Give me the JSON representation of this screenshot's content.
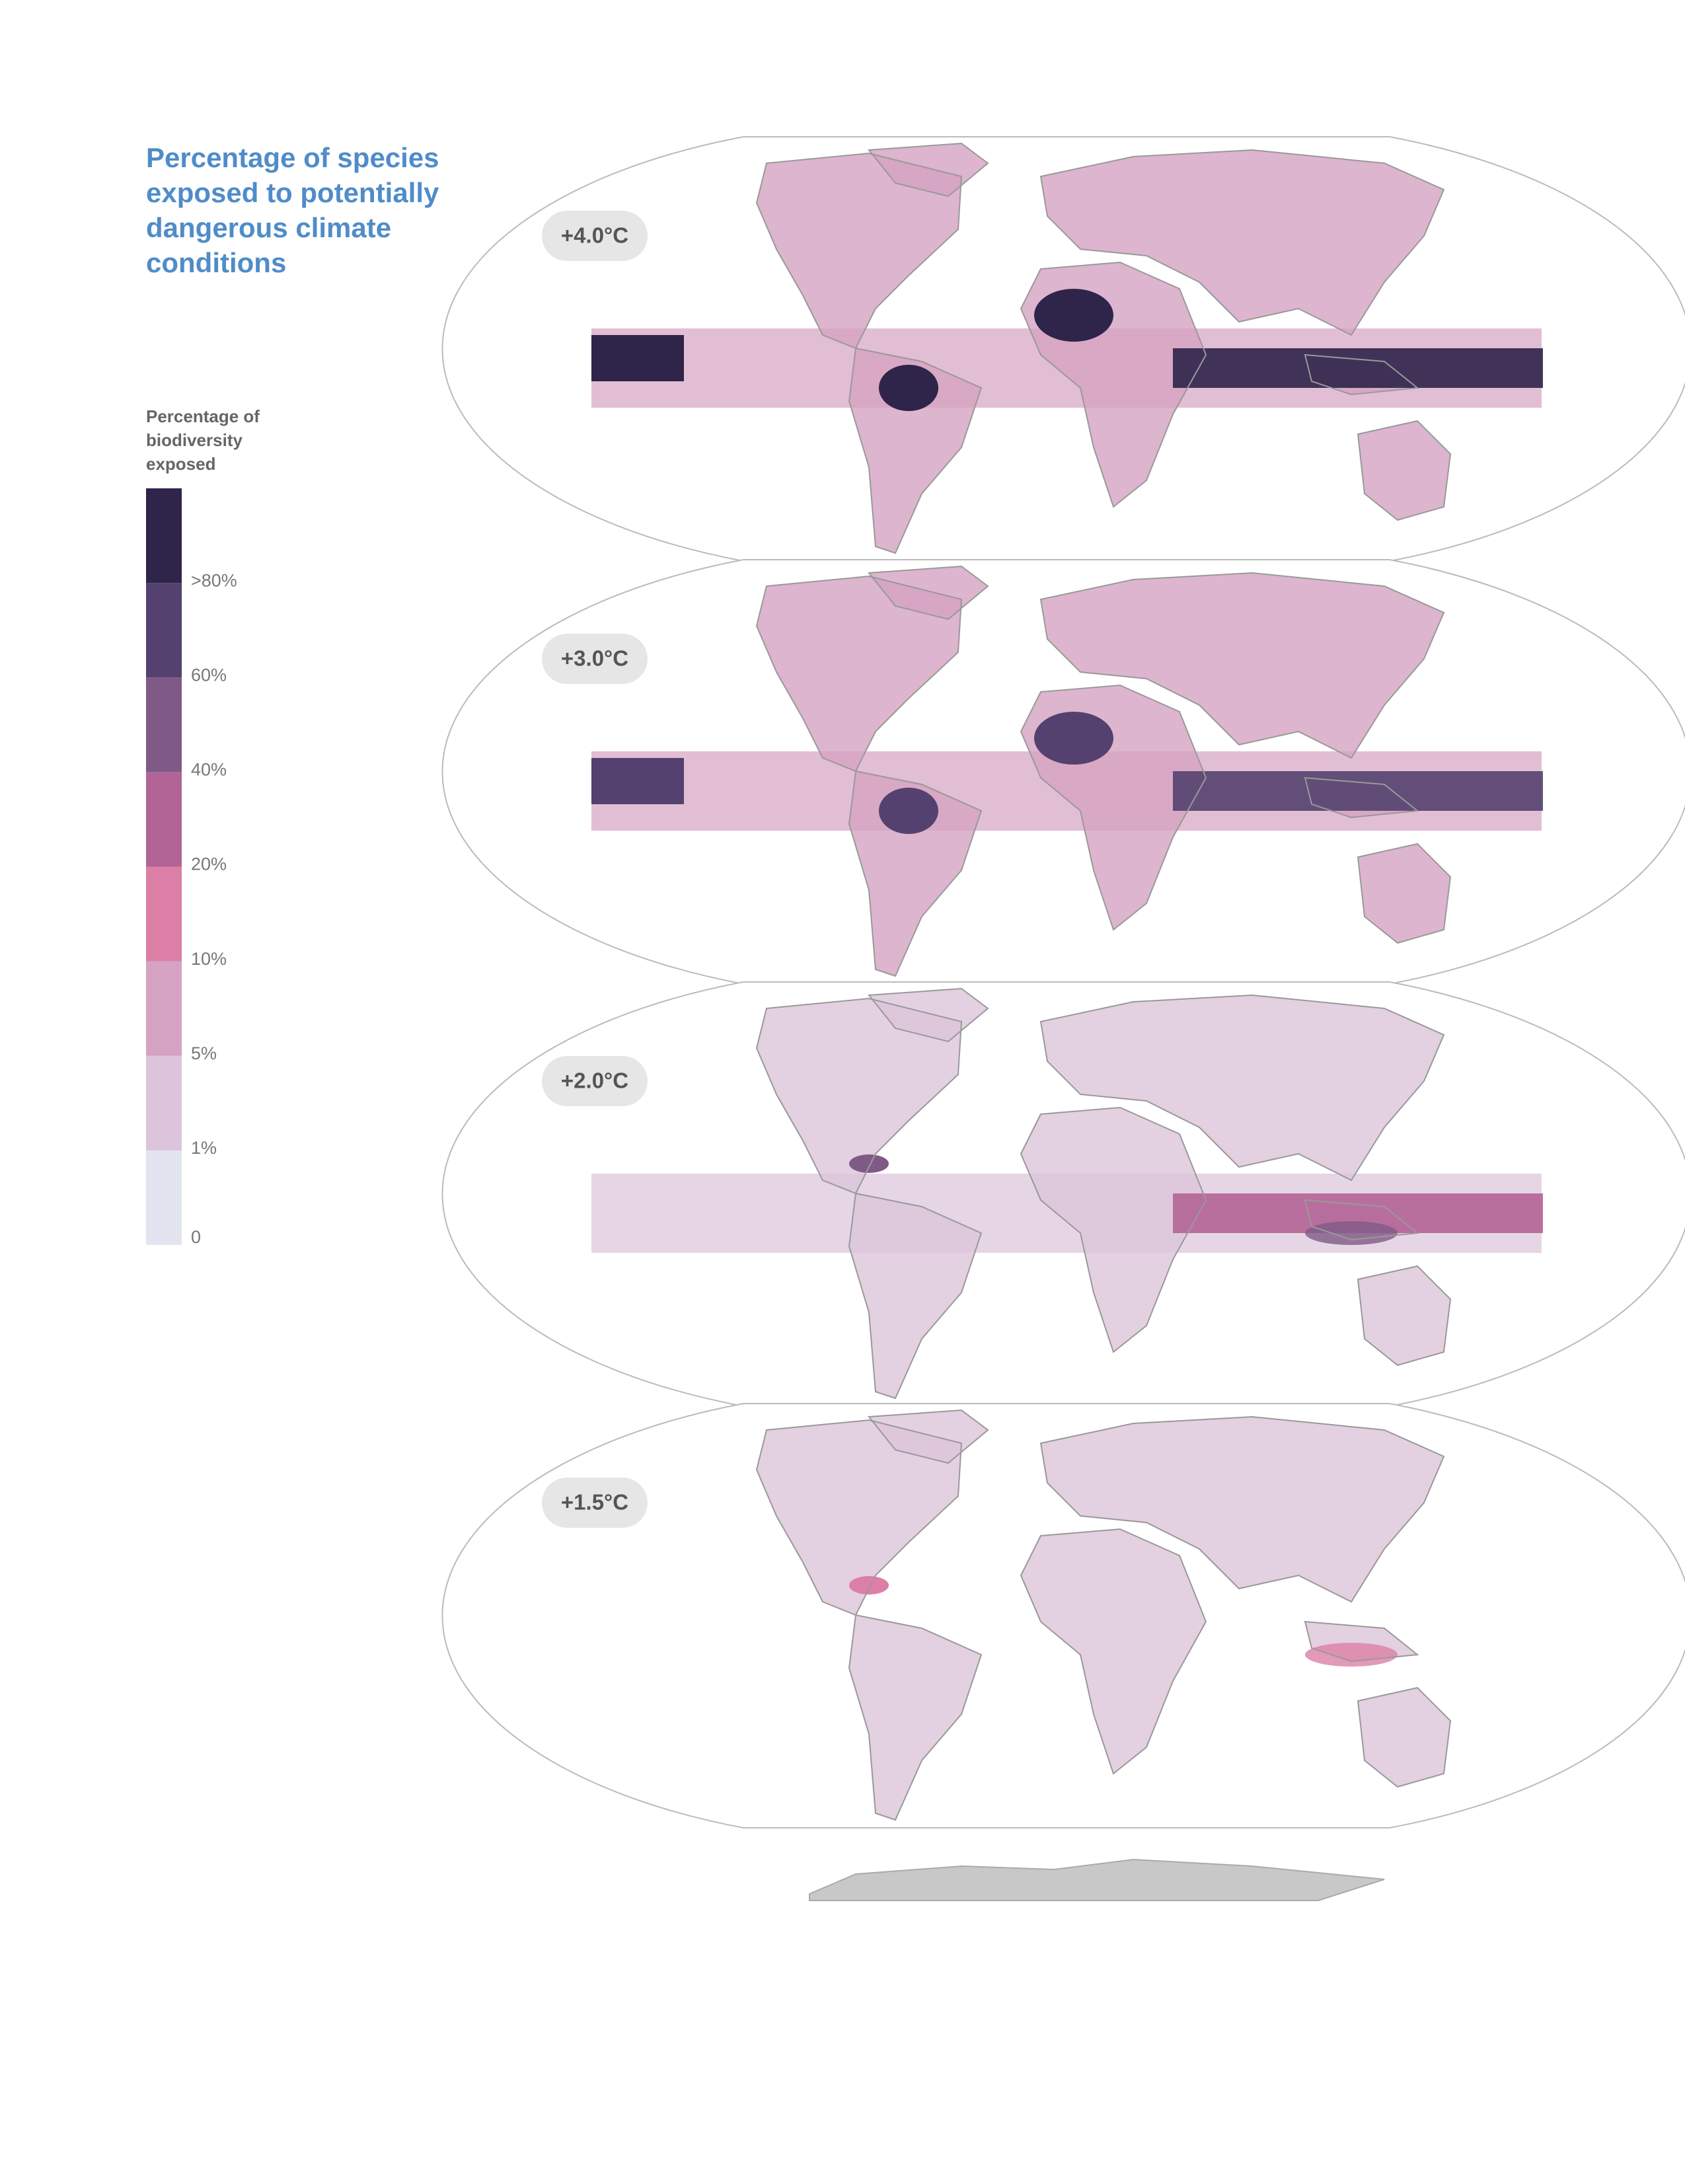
{
  "header": {
    "title": "Percentage of species exposed to potentially dangerous climate conditions"
  },
  "legend": {
    "title": "Percentage of biodiversity exposed",
    "labels": [
      "0",
      "1%",
      "5%",
      "10%",
      "20%",
      "40%",
      "60%",
      ">80%"
    ],
    "colors": [
      "#e2e5ef",
      "#dcc4da",
      "#d5a2c2",
      "#dc7fa7",
      "#b26496",
      "#805a87",
      "#54416f",
      "#2f2449"
    ]
  },
  "maps": [
    {
      "label": "+4.0°C"
    },
    {
      "label": "+3.0°C"
    },
    {
      "label": "+2.0°C"
    },
    {
      "label": "+1.5°C"
    }
  ]
}
